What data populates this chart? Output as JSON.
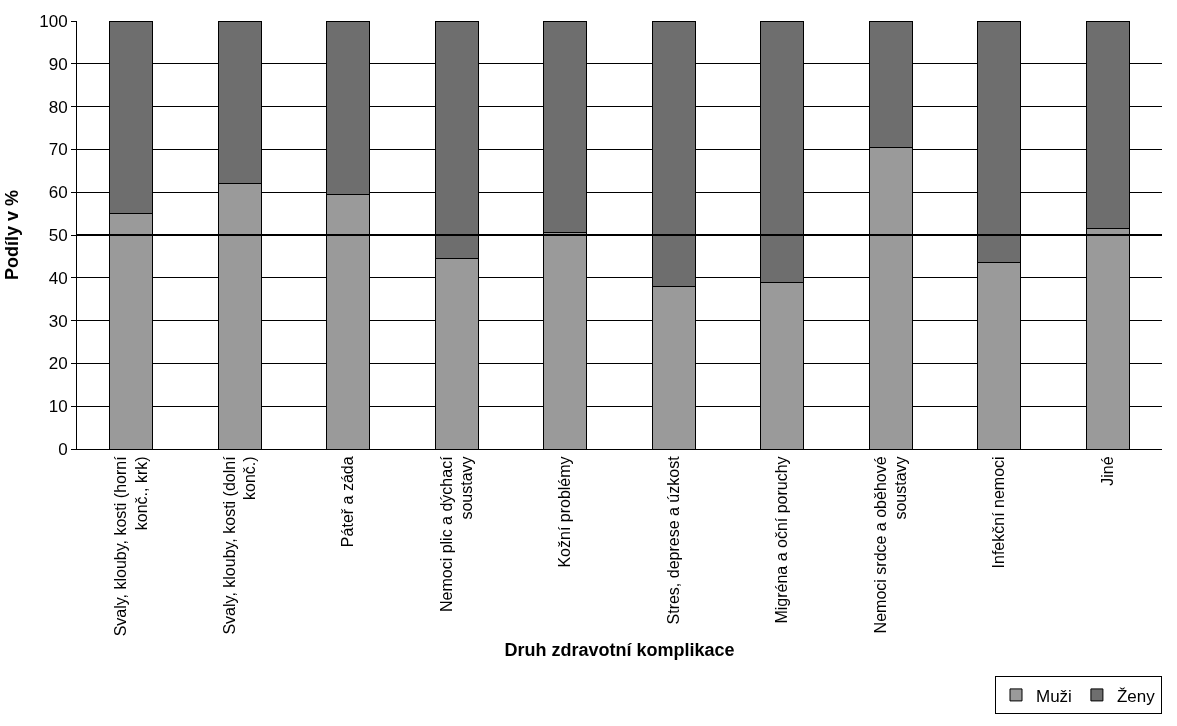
{
  "chart_data": {
    "type": "bar",
    "stacked": true,
    "xlabel": "Druh zdravotní komplikace",
    "ylabel": "Podíly v %",
    "categories": [
      "Svaly, klouby, kosti (horní konč., krk)",
      "Svaly, klouby, kosti (dolní konč.)",
      "Páteř a záda",
      "Nemoci plic a dýchací soustavy",
      "Kožní problémy",
      "Stres, deprese a úzkost",
      "Migréna a oční poruchy",
      "Nemoci srdce a oběhové soustavy",
      "Infekční nemoci",
      "Jiné"
    ],
    "series": [
      {
        "name": "Muži",
        "color": "#9a9a9a",
        "values": [
          55,
          62,
          59.5,
          44.5,
          50.5,
          38,
          39,
          70.5,
          43.5,
          51.5
        ]
      },
      {
        "name": "Ženy",
        "color": "#6e6e6e",
        "values": [
          45,
          38,
          40.5,
          55.5,
          49.5,
          62,
          61,
          29.5,
          56.5,
          48.5
        ]
      }
    ],
    "ylim": [
      0,
      100
    ],
    "yticks": [
      0,
      10,
      20,
      30,
      40,
      50,
      60,
      70,
      80,
      90,
      100
    ],
    "grid": "y",
    "legend": "bottom right",
    "ref_lines": [
      {
        "axis": "y",
        "value": 50,
        "color": "#000000"
      }
    ]
  }
}
